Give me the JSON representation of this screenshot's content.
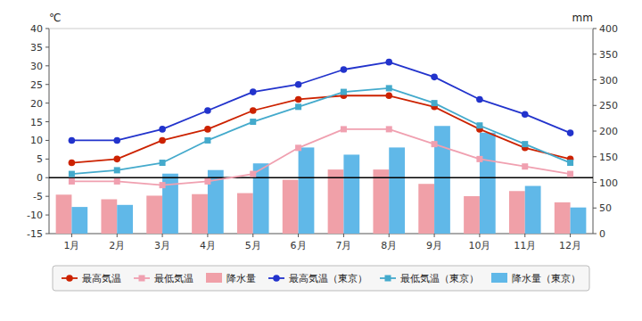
{
  "chart_data": {
    "type": "combo",
    "categories": [
      "1月",
      "2月",
      "3月",
      "4月",
      "5月",
      "6月",
      "7月",
      "8月",
      "9月",
      "10月",
      "11月",
      "12月"
    ],
    "series": [
      {
        "name": "最高気温",
        "type": "line",
        "marker": "circle",
        "color": "#cc2200",
        "values": [
          4,
          5,
          10,
          13,
          18,
          21,
          22,
          22,
          19,
          13,
          8,
          5
        ]
      },
      {
        "name": "最低気温",
        "type": "line",
        "marker": "square",
        "color": "#f0a0b0",
        "values": [
          -1,
          -1,
          -2,
          -1,
          1,
          8,
          13,
          13,
          9,
          5,
          3,
          1
        ]
      },
      {
        "name": "降水量",
        "type": "bar",
        "axis": "y2",
        "color": "#f0a0a8",
        "values": [
          76,
          67,
          74,
          77,
          79,
          105,
          125,
          125,
          97,
          73,
          83,
          61
        ]
      },
      {
        "name": "最高気温（東京）",
        "type": "line",
        "marker": "circle",
        "color": "#2233cc",
        "values": [
          10,
          10,
          13,
          18,
          23,
          25,
          29,
          31,
          27,
          21,
          17,
          12
        ]
      },
      {
        "name": "最低気温（東京）",
        "type": "line",
        "marker": "square",
        "color": "#44aacc",
        "values": [
          1,
          2,
          4,
          10,
          15,
          19,
          23,
          24,
          20,
          14,
          9,
          4
        ]
      },
      {
        "name": "降水量（東京）",
        "type": "bar",
        "axis": "y2",
        "color": "#60b8e8",
        "values": [
          52,
          56,
          117,
          124,
          137,
          168,
          154,
          168,
          210,
          197,
          93,
          51
        ]
      }
    ],
    "ylabel": "℃",
    "y2label": "mm",
    "ylim": [
      -15,
      40
    ],
    "yticks": [
      -15,
      -10,
      -5,
      0,
      5,
      10,
      15,
      20,
      25,
      30,
      35,
      40
    ],
    "y2lim": [
      0,
      400
    ],
    "y2ticks": [
      0,
      50,
      100,
      150,
      200,
      250,
      300,
      350,
      400
    ],
    "reference_line": 0,
    "grid": false,
    "legend": "bottom"
  }
}
